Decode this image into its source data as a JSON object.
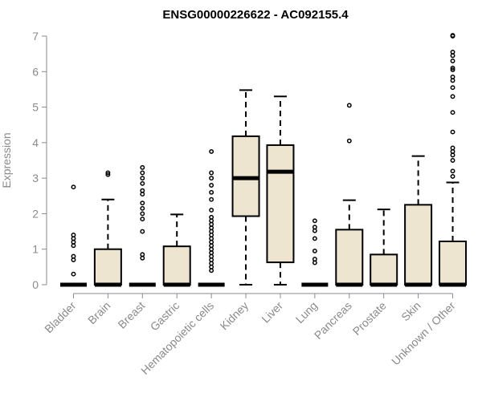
{
  "chart_data": {
    "type": "box",
    "title": "ENSG00000226622 - AC092155.4",
    "ylabel": "Expression",
    "xlabel": "",
    "ylim": [
      0,
      7
    ],
    "yticks": [
      0,
      1,
      2,
      3,
      4,
      5,
      6,
      7
    ],
    "grid": false,
    "box_fill": "#ede5cf",
    "box_stroke": "#000000",
    "axis_color": "#8a8a8a",
    "categories": [
      "Bladder",
      "Brain",
      "Breast",
      "Gastric",
      "Hematopoietic cells",
      "Kidney",
      "Liver",
      "Lung",
      "Pancreas",
      "Prostate",
      "Skin",
      "Unknown / Other"
    ],
    "boxes": [
      {
        "q1": 0,
        "median": 0,
        "q3": 0,
        "whisker_low": 0,
        "whisker_high": 0,
        "outliers": [
          0.3,
          0.7,
          0.8,
          1.1,
          1.2,
          1.3,
          1.4,
          2.75
        ]
      },
      {
        "q1": 0,
        "median": 0,
        "q3": 1.0,
        "whisker_low": 0,
        "whisker_high": 2.4,
        "outliers": [
          3.1,
          3.15
        ]
      },
      {
        "q1": 0,
        "median": 0,
        "q3": 0,
        "whisker_low": 0,
        "whisker_high": 0,
        "outliers": [
          0.75,
          0.85,
          1.5,
          1.85,
          2.0,
          2.15,
          2.3,
          2.55,
          2.65,
          2.85,
          3.0,
          3.15,
          3.3
        ]
      },
      {
        "q1": 0,
        "median": 0,
        "q3": 1.08,
        "whisker_low": 0,
        "whisker_high": 1.98,
        "outliers": []
      },
      {
        "q1": 0,
        "median": 0,
        "q3": 0,
        "whisker_low": 0,
        "whisker_high": 0,
        "outliers": [
          0.4,
          0.5,
          0.6,
          0.7,
          0.8,
          0.9,
          1.0,
          1.1,
          1.2,
          1.3,
          1.4,
          1.5,
          1.6,
          1.7,
          1.8,
          1.9,
          2.1,
          2.4,
          2.6,
          2.8,
          3.0,
          3.15,
          3.75
        ]
      },
      {
        "q1": 1.93,
        "median": 3.0,
        "q3": 4.18,
        "whisker_low": 0,
        "whisker_high": 5.48,
        "outliers": []
      },
      {
        "q1": 0.63,
        "median": 3.18,
        "q3": 3.93,
        "whisker_low": 0,
        "whisker_high": 5.3,
        "outliers": []
      },
      {
        "q1": 0,
        "median": 0,
        "q3": 0,
        "whisker_low": 0,
        "whisker_high": 0,
        "outliers": [
          0.62,
          0.72,
          0.95,
          1.3,
          1.52,
          1.62,
          1.8
        ]
      },
      {
        "q1": 0,
        "median": 0,
        "q3": 1.55,
        "whisker_low": 0,
        "whisker_high": 2.38,
        "outliers": [
          4.05,
          5.05
        ]
      },
      {
        "q1": 0,
        "median": 0,
        "q3": 0.85,
        "whisker_low": 0,
        "whisker_high": 2.12,
        "outliers": []
      },
      {
        "q1": 0,
        "median": 0,
        "q3": 2.25,
        "whisker_low": 0,
        "whisker_high": 3.62,
        "outliers": []
      },
      {
        "q1": 0,
        "median": 0,
        "q3": 1.22,
        "whisker_low": 0,
        "whisker_high": 2.88,
        "outliers": [
          3.05,
          3.2,
          3.5,
          3.65,
          3.75,
          3.85,
          4.3,
          4.85,
          5.3,
          5.55,
          5.75,
          5.85,
          6.05,
          6.1,
          6.3,
          6.45,
          6.55,
          7.0,
          7.02
        ]
      }
    ]
  }
}
